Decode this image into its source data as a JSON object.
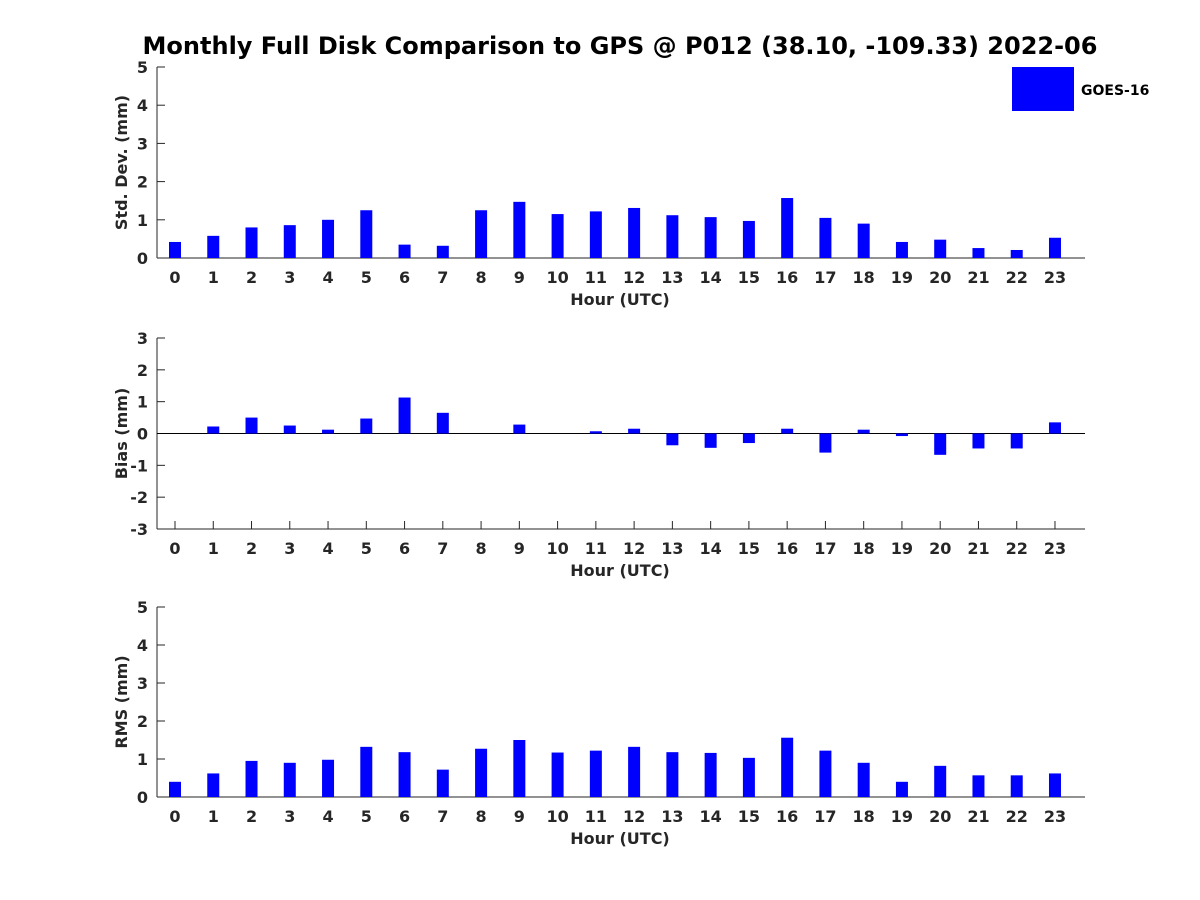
{
  "title": "Monthly Full Disk Comparison to GPS @ P012 (38.10, -109.33) 2022-06",
  "legend": {
    "label": "GOES-16",
    "color": "#0000ff",
    "placement": "top-right"
  },
  "chart_data": [
    {
      "type": "bar",
      "xlabel": "Hour (UTC)",
      "ylabel": "Std. Dev. (mm)",
      "ylim": [
        0,
        5
      ],
      "yticks": [
        "0",
        "1",
        "2",
        "3",
        "4",
        "5"
      ],
      "categories": [
        "0",
        "1",
        "2",
        "3",
        "4",
        "5",
        "6",
        "7",
        "8",
        "9",
        "10",
        "11",
        "12",
        "13",
        "14",
        "15",
        "16",
        "17",
        "18",
        "19",
        "20",
        "21",
        "22",
        "23"
      ],
      "series": [
        {
          "name": "GOES-16",
          "color": "#0000ff",
          "values": [
            0.42,
            0.58,
            0.8,
            0.86,
            1.0,
            1.25,
            0.35,
            0.32,
            1.25,
            1.47,
            1.15,
            1.22,
            1.31,
            1.12,
            1.07,
            0.97,
            1.57,
            1.05,
            0.9,
            0.42,
            0.48,
            0.26,
            0.21,
            0.53
          ]
        }
      ],
      "grid": false
    },
    {
      "type": "bar",
      "xlabel": "Hour (UTC)",
      "ylabel": "Bias (mm)",
      "ylim": [
        -3,
        3
      ],
      "yticks": [
        "-3",
        "-2",
        "-1",
        "0",
        "1",
        "2",
        "3"
      ],
      "categories": [
        "0",
        "1",
        "2",
        "3",
        "4",
        "5",
        "6",
        "7",
        "8",
        "9",
        "10",
        "11",
        "12",
        "13",
        "14",
        "15",
        "16",
        "17",
        "18",
        "19",
        "20",
        "21",
        "22",
        "23"
      ],
      "series": [
        {
          "name": "GOES-16",
          "color": "#0000ff",
          "values": [
            0.0,
            0.22,
            0.5,
            0.25,
            0.12,
            0.47,
            1.13,
            0.65,
            0.0,
            0.28,
            0.0,
            0.07,
            0.15,
            -0.37,
            -0.45,
            -0.3,
            0.15,
            -0.6,
            0.12,
            -0.08,
            -0.67,
            -0.47,
            -0.47,
            0.35
          ]
        }
      ],
      "grid": false
    },
    {
      "type": "bar",
      "xlabel": "Hour (UTC)",
      "ylabel": "RMS (mm)",
      "ylim": [
        0,
        5
      ],
      "yticks": [
        "0",
        "1",
        "2",
        "3",
        "4",
        "5"
      ],
      "categories": [
        "0",
        "1",
        "2",
        "3",
        "4",
        "5",
        "6",
        "7",
        "8",
        "9",
        "10",
        "11",
        "12",
        "13",
        "14",
        "15",
        "16",
        "17",
        "18",
        "19",
        "20",
        "21",
        "22",
        "23"
      ],
      "series": [
        {
          "name": "GOES-16",
          "color": "#0000ff",
          "values": [
            0.4,
            0.62,
            0.95,
            0.9,
            0.98,
            1.32,
            1.18,
            0.72,
            1.27,
            1.5,
            1.17,
            1.22,
            1.32,
            1.18,
            1.16,
            1.03,
            1.56,
            1.22,
            0.9,
            0.4,
            0.82,
            0.57,
            0.57,
            0.62
          ]
        }
      ],
      "grid": false
    }
  ]
}
